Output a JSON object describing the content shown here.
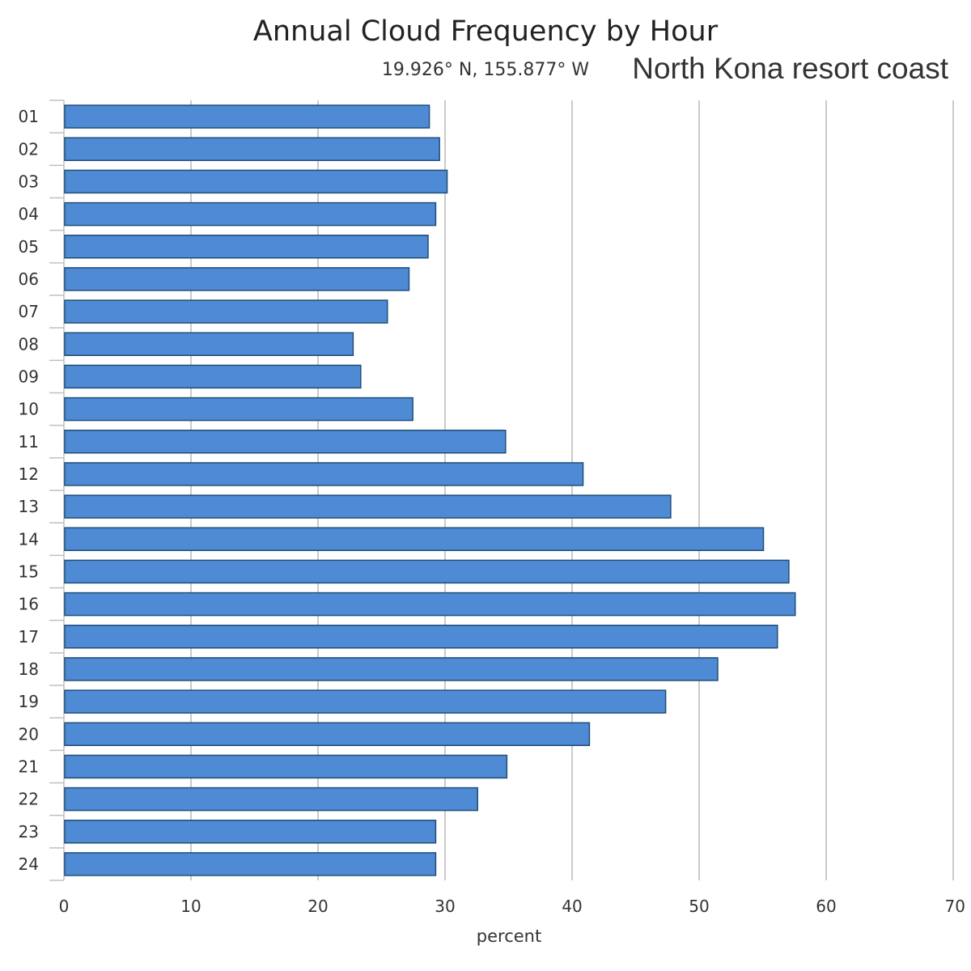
{
  "chart_data": {
    "type": "bar",
    "orientation": "horizontal",
    "title": "Annual Cloud Frequency by Hour",
    "subtitle": "19.926° N, 155.877° W",
    "location": "North Kona resort coast",
    "xlabel": "percent",
    "xlim": [
      0,
      70
    ],
    "xticks": [
      "0",
      "10",
      "20",
      "30",
      "40",
      "50",
      "60",
      "70"
    ],
    "grid": true,
    "categories": [
      "01",
      "02",
      "03",
      "04",
      "05",
      "06",
      "07",
      "08",
      "09",
      "10",
      "11",
      "12",
      "13",
      "14",
      "15",
      "16",
      "17",
      "18",
      "19",
      "20",
      "21",
      "22",
      "23",
      "24"
    ],
    "values": [
      28.7,
      29.5,
      30.1,
      29.2,
      28.6,
      27.1,
      25.4,
      22.7,
      23.3,
      27.4,
      34.7,
      40.8,
      47.7,
      55.0,
      57.0,
      57.5,
      56.1,
      51.4,
      47.3,
      41.3,
      34.8,
      32.5,
      29.2,
      29.2
    ],
    "colors": {
      "bar": "#4f8ad4",
      "bar_edge": "#1f4e79",
      "grid": "#b8b8b8"
    }
  }
}
